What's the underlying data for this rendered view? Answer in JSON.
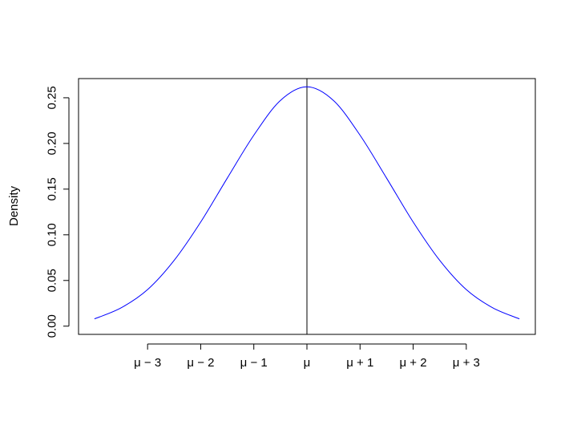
{
  "chart_data": {
    "type": "line",
    "title": "",
    "xlabel": "",
    "ylabel": "Density",
    "xlim": [
      -4.3,
      4.3
    ],
    "ylim": [
      -0.009,
      0.271
    ],
    "grid": false,
    "legend": "none",
    "x_ticks": [
      {
        "value": -3,
        "label": "μ − 3"
      },
      {
        "value": -2,
        "label": "μ − 2"
      },
      {
        "value": -1,
        "label": "μ − 1"
      },
      {
        "value": 0,
        "label": "μ"
      },
      {
        "value": 1,
        "label": "μ + 1"
      },
      {
        "value": 2,
        "label": "μ + 2"
      },
      {
        "value": 3,
        "label": "μ + 3"
      }
    ],
    "y_ticks": [
      {
        "value": 0.0,
        "label": "0.00"
      },
      {
        "value": 0.05,
        "label": "0.05"
      },
      {
        "value": 0.1,
        "label": "0.10"
      },
      {
        "value": 0.15,
        "label": "0.15"
      },
      {
        "value": 0.2,
        "label": "0.20"
      },
      {
        "value": 0.25,
        "label": "0.25"
      }
    ],
    "series": [
      {
        "color": "#0000ff",
        "x": [
          -4.0,
          -3.5,
          -3.0,
          -2.5,
          -2.0,
          -1.5,
          -1.0,
          -0.5,
          0.0,
          0.5,
          1.0,
          1.5,
          2.0,
          2.5,
          3.0,
          3.5,
          4.0
        ],
        "y": [
          0.008,
          0.02,
          0.04,
          0.072,
          0.114,
          0.162,
          0.209,
          0.247,
          0.262,
          0.247,
          0.209,
          0.162,
          0.114,
          0.072,
          0.04,
          0.02,
          0.008
        ]
      }
    ],
    "reference_lines": [
      {
        "orientation": "vertical",
        "x": 0,
        "color": "#000000"
      }
    ]
  }
}
